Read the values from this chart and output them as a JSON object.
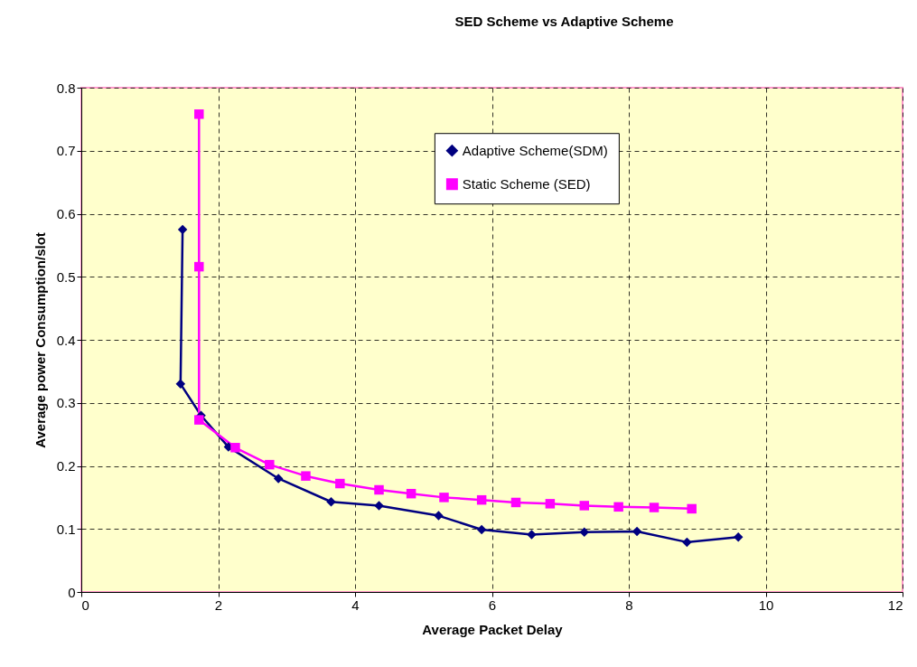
{
  "chart_data": {
    "type": "line",
    "title": "SED Scheme vs Adaptive Scheme",
    "xlabel": "Average Packet Delay",
    "ylabel": "Average power Consumption/slot",
    "xlim": [
      0,
      12
    ],
    "xticks": [
      0,
      2,
      4,
      6,
      8,
      10,
      12
    ],
    "ylim": [
      0,
      0.8
    ],
    "yticks": [
      0,
      0.1,
      0.2,
      0.3,
      0.4,
      0.5,
      0.6,
      0.7,
      0.8
    ],
    "grid": true,
    "legend": "top right",
    "line_style": "solid",
    "series": [
      {
        "name": "Adaptive Scheme(SDM)",
        "color": "#000080",
        "marker": "diamond",
        "x": [
          1.48,
          1.45,
          1.75,
          2.15,
          2.88,
          3.65,
          4.35,
          5.22,
          5.85,
          6.58,
          7.35,
          8.12,
          8.85,
          9.6
        ],
        "values": [
          0.575,
          0.33,
          0.28,
          0.23,
          0.18,
          0.143,
          0.137,
          0.121,
          0.099,
          0.091,
          0.095,
          0.096,
          0.079,
          0.087
        ]
      },
      {
        "name": "Static Scheme (SED)",
        "color": "#ff00ff",
        "marker": "square",
        "x": [
          1.72,
          1.72,
          1.72,
          2.25,
          2.75,
          3.28,
          3.78,
          4.35,
          4.82,
          5.3,
          5.85,
          6.35,
          6.85,
          7.35,
          7.85,
          8.37,
          8.92
        ],
        "values": [
          0.758,
          0.516,
          0.273,
          0.229,
          0.202,
          0.184,
          0.172,
          0.162,
          0.156,
          0.15,
          0.146,
          0.142,
          0.14,
          0.137,
          0.135,
          0.134,
          0.132
        ]
      }
    ]
  }
}
